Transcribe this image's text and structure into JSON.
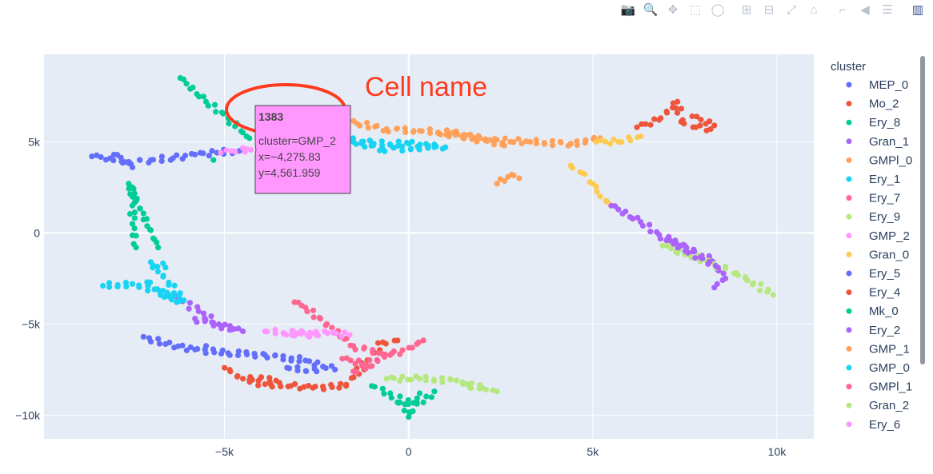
{
  "modebar": {
    "buttons": [
      {
        "name": "camera-icon",
        "glyph": "📷"
      },
      {
        "name": "zoom-icon",
        "glyph": "🔍"
      },
      {
        "name": "pan-icon",
        "glyph": "✥"
      },
      {
        "name": "box-select-icon",
        "glyph": "⬚"
      },
      {
        "name": "lasso-select-icon",
        "glyph": "◯"
      },
      {
        "name": "zoom-in-icon",
        "glyph": "⊞"
      },
      {
        "name": "zoom-out-icon",
        "glyph": "⊟"
      },
      {
        "name": "autoscale-icon",
        "glyph": "⤢"
      },
      {
        "name": "reset-axes-icon",
        "glyph": "⌂"
      },
      {
        "name": "spike-lines-icon",
        "glyph": "⌐"
      },
      {
        "name": "hover-closest-icon",
        "glyph": "◀"
      },
      {
        "name": "hover-compare-icon",
        "glyph": "☰"
      }
    ],
    "logo_glyph": "▥"
  },
  "annotation": {
    "text": "Cell name",
    "color": "#ff3b1f"
  },
  "tooltip": {
    "title": "1383",
    "line1": "cluster=GMP_2",
    "line2": "x=−4,275.83",
    "line3": "y=4,561.959",
    "background": "#ff97ff",
    "x": -4275.83,
    "y": 4561.959
  },
  "chart_data": {
    "type": "scatter",
    "legend_title": "cluster",
    "legend_position": "right",
    "grid": true,
    "xlim": [
      -9900,
      11000
    ],
    "ylim": [
      -11300,
      9800
    ],
    "xticks": [
      {
        "value": -5000,
        "label": "−5k"
      },
      {
        "value": 0,
        "label": "0"
      },
      {
        "value": 5000,
        "label": "5k"
      },
      {
        "value": 10000,
        "label": "10k"
      }
    ],
    "yticks": [
      {
        "value": 5000,
        "label": "5k"
      },
      {
        "value": 0,
        "label": "0"
      },
      {
        "value": -5000,
        "label": "−5k"
      },
      {
        "value": -10000,
        "label": "−10k"
      }
    ],
    "series": [
      {
        "name": "MEP_0",
        "color": "#636efa",
        "points": [
          [
            -8600,
            4200
          ],
          [
            -8100,
            4100
          ],
          [
            -7600,
            3900
          ],
          [
            -7000,
            4000
          ],
          [
            -6400,
            4100
          ],
          [
            -5800,
            4300
          ],
          [
            -5200,
            4400
          ],
          [
            -4600,
            4500
          ],
          [
            -7200,
            -5700
          ],
          [
            -6600,
            -6100
          ],
          [
            -5800,
            -6400
          ],
          [
            -4900,
            -6600
          ],
          [
            -3900,
            -6700
          ],
          [
            -2800,
            -7000
          ],
          [
            -2000,
            -7500
          ]
        ]
      },
      {
        "name": "Mo_2",
        "color": "#ef553b",
        "points": [
          [
            6200,
            5800
          ],
          [
            6800,
            6200
          ],
          [
            7300,
            7200
          ],
          [
            7400,
            6100
          ],
          [
            7800,
            5800
          ],
          [
            8200,
            5700
          ],
          [
            -5000,
            -7400
          ],
          [
            -4500,
            -8000
          ],
          [
            -3900,
            -8300
          ],
          [
            -3200,
            -8400
          ],
          [
            -2600,
            -8500
          ],
          [
            -1700,
            -8400
          ],
          [
            -700,
            -6000
          ],
          [
            -300,
            -5900
          ]
        ]
      },
      {
        "name": "Ery_8",
        "color": "#00cc96",
        "points": [
          [
            -6200,
            8500
          ],
          [
            -5500,
            7200
          ],
          [
            -4900,
            6300
          ],
          [
            -4400,
            5300
          ],
          [
            -4000,
            5000
          ],
          [
            -3000,
            5200
          ],
          [
            -7500,
            2500
          ],
          [
            -7500,
            1500
          ],
          [
            -7500,
            500
          ],
          [
            -7400,
            -800
          ],
          [
            -1000,
            -8400
          ],
          [
            -500,
            -8800
          ],
          [
            -100,
            -9400
          ],
          [
            0,
            -10100
          ],
          [
            300,
            -8800
          ]
        ]
      },
      {
        "name": "Gran_1",
        "color": "#ab63fa",
        "points": [
          [
            5500,
            1500
          ],
          [
            6300,
            600
          ],
          [
            6800,
            -100
          ],
          [
            7500,
            -700
          ],
          [
            8200,
            -1500
          ],
          [
            8600,
            -2500
          ],
          [
            8300,
            -3000
          ],
          [
            -6300,
            -3500
          ],
          [
            -5700,
            -4300
          ],
          [
            -5100,
            -5100
          ],
          [
            -4500,
            -5400
          ]
        ]
      },
      {
        "name": "GMPl_0",
        "color": "#ffa15a",
        "points": [
          [
            -2300,
            6200
          ],
          [
            -1400,
            6000
          ],
          [
            -600,
            5700
          ],
          [
            300,
            5600
          ],
          [
            1200,
            5500
          ],
          [
            2200,
            5100
          ],
          [
            3300,
            5000
          ],
          [
            4400,
            4900
          ],
          [
            5200,
            5200
          ],
          [
            2400,
            2700
          ],
          [
            2800,
            3200
          ],
          [
            3000,
            3000
          ]
        ]
      },
      {
        "name": "Ery_1",
        "color": "#19d3f3",
        "points": [
          [
            -3600,
            5700
          ],
          [
            -3000,
            5400
          ],
          [
            -2000,
            5300
          ],
          [
            -1000,
            4900
          ],
          [
            0,
            4900
          ],
          [
            1000,
            4700
          ],
          [
            -8300,
            -2900
          ],
          [
            -7500,
            -2800
          ],
          [
            -6900,
            -3100
          ],
          [
            -6500,
            -3500
          ],
          [
            -6100,
            -3700
          ],
          [
            -7000,
            -1600
          ],
          [
            -6600,
            -1900
          ]
        ]
      },
      {
        "name": "Ery_7",
        "color": "#ff6692",
        "points": [
          [
            -3100,
            -3800
          ],
          [
            -2800,
            -4100
          ],
          [
            -1500,
            -6200
          ],
          [
            -800,
            -6600
          ],
          [
            -500,
            -6700
          ],
          [
            100,
            -6300
          ],
          [
            400,
            -5900
          ]
        ]
      },
      {
        "name": "Ery_9",
        "color": "#b6e880",
        "points": [
          [
            6900,
            -700
          ],
          [
            7600,
            -1200
          ],
          [
            8300,
            -1700
          ],
          [
            8900,
            -2200
          ],
          [
            9900,
            -3400
          ],
          [
            -600,
            -8000
          ],
          [
            300,
            -8000
          ],
          [
            1300,
            -8100
          ],
          [
            2100,
            -8600
          ],
          [
            2400,
            -8700
          ]
        ]
      },
      {
        "name": "GMP_2",
        "color": "#ff97ff",
        "points": [
          [
            -5100,
            4400
          ],
          [
            -4800,
            4500
          ],
          [
            -4275.83,
            4561.959
          ],
          [
            -3900,
            -5400
          ],
          [
            -3000,
            -5500
          ],
          [
            -2200,
            -5500
          ],
          [
            -1600,
            -5600
          ]
        ]
      },
      {
        "name": "Gran_0",
        "color": "#fecb52",
        "points": [
          [
            5100,
            5000
          ],
          [
            5700,
            5000
          ],
          [
            6300,
            5300
          ],
          [
            4400,
            3700
          ],
          [
            4700,
            3300
          ],
          [
            5000,
            2700
          ],
          [
            5200,
            2000
          ],
          [
            5400,
            1700
          ]
        ]
      },
      {
        "name": "Ery_5",
        "color": "#636efa",
        "points": [
          [
            -7500,
            3600
          ],
          [
            -8000,
            4300
          ],
          [
            -5500,
            -6200
          ],
          [
            -3300,
            -7400
          ],
          [
            -2500,
            -7600
          ]
        ]
      },
      {
        "name": "Ery_4",
        "color": "#ef553b",
        "points": [
          [
            7700,
            6400
          ],
          [
            8300,
            5900
          ],
          [
            -4300,
            -7900
          ],
          [
            -3600,
            -8100
          ]
        ]
      },
      {
        "name": "Mk_0",
        "color": "#00cc96",
        "points": [
          [
            -5300,
            4000
          ],
          [
            -7600,
            2700
          ],
          [
            -6800,
            -800
          ],
          [
            -300,
            -9300
          ],
          [
            400,
            -9300
          ],
          [
            700,
            -8700
          ]
        ]
      },
      {
        "name": "Ery_2",
        "color": "#ab63fa",
        "points": [
          [
            7000,
            -400
          ],
          [
            8400,
            -1900
          ],
          [
            -5800,
            -4700
          ],
          [
            -4800,
            -5300
          ]
        ]
      },
      {
        "name": "GMP_1",
        "color": "#ffa15a",
        "points": [
          [
            -1900,
            6100
          ],
          [
            800,
            5500
          ],
          [
            1800,
            5200
          ],
          [
            2600,
            4800
          ]
        ]
      },
      {
        "name": "GMP_0",
        "color": "#19d3f3",
        "points": [
          [
            -2600,
            5300
          ],
          [
            -1500,
            5000
          ],
          [
            -700,
            4600
          ],
          [
            700,
            4700
          ],
          [
            -7100,
            -2700
          ],
          [
            -6300,
            -3800
          ]
        ]
      },
      {
        "name": "GMPl_1",
        "color": "#ff6692",
        "points": [
          [
            -1800,
            -6900
          ],
          [
            -1000,
            -7300
          ],
          [
            -1500,
            -7600
          ],
          [
            -400,
            -6500
          ]
        ]
      },
      {
        "name": "Gran_2",
        "color": "#b6e880",
        "points": [
          [
            7300,
            -1100
          ],
          [
            9200,
            -2600
          ],
          [
            1600,
            -8300
          ],
          [
            2000,
            -8500
          ]
        ]
      },
      {
        "name": "Ery_6",
        "color": "#ff97ff",
        "points": [
          [
            -4400,
            4600
          ],
          [
            -3400,
            -5500
          ],
          [
            -2500,
            -5600
          ]
        ]
      }
    ]
  }
}
